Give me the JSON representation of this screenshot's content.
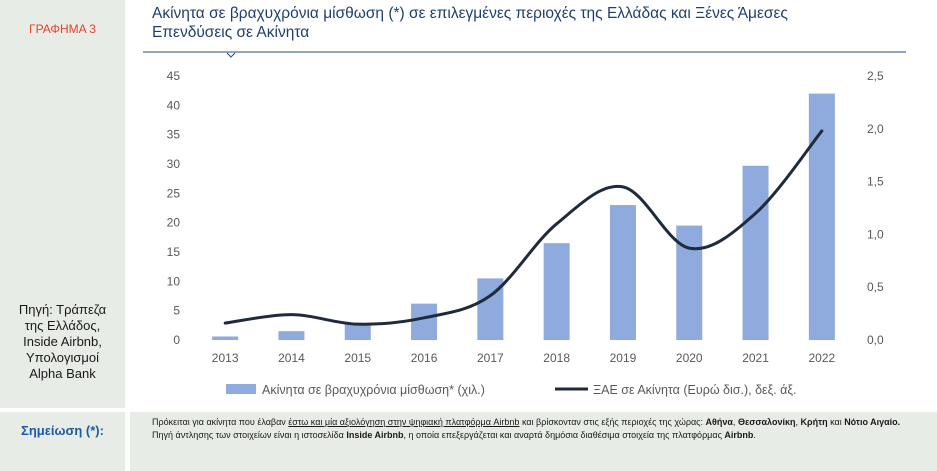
{
  "header": {
    "graph_label": "ΓΡΑΦΗΜΑ 3",
    "title_line1": "Ακίνητα σε βραχυχρόνια μίσθωση (*) σε επιλεγμένες περιοχές της Ελλάδας και Ξένες Άμεσες",
    "title_line2": "Επενδύσεις σε Ακίνητα"
  },
  "source": {
    "lines": [
      "Πηγή: Τράπεζα",
      "της Ελλάδος,",
      "Inside Airbnb,",
      "Υπολογισμοί",
      "Alpha Bank"
    ]
  },
  "note": {
    "label": "Σημείωση (*):",
    "p1": "Πρόκειται για ακίνητα που έλαβαν ",
    "p2": "έστω και μία αξιολόγηση στην ψηφιακή πλατφόρμα Airbnb",
    "p3": " και βρίσκονταν στις εξής περιοχές της χώρας: ",
    "p4": "Αθήνα",
    "p5": ", ",
    "p6": "Θεσσαλονίκη",
    "p7": ", ",
    "p8": "Κρήτη",
    "p9": " και ",
    "p10": "Νότιο Αιγαίο.",
    "p11": " Πηγή άντλησης των στοιχείων είναι η ιστοσελίδα ",
    "p12": "Inside Airbnb",
    "p13": ", η οποία επεξεργάζεται και αναρτά δημόσια διαθέσιμα στοιχεία της πλατφόρμας ",
    "p14": "Airbnb",
    "p15": "."
  },
  "colors": {
    "bar": "#8faadc",
    "line": "#1f2a3a",
    "title": "#1f3f6e",
    "rule": "#1f4e79",
    "graph_label": "#e8412b",
    "note_label": "#1e5aa8"
  },
  "chart_data": {
    "type": "bar+line",
    "categories": [
      "2013",
      "2014",
      "2015",
      "2016",
      "2017",
      "2018",
      "2019",
      "2020",
      "2021",
      "2022"
    ],
    "series": [
      {
        "name": "Ακίνητα σε βραχυχρόνια μίσθωση* (χιλ.)",
        "type": "bar",
        "axis": "left",
        "values": [
          0.6,
          1.5,
          2.8,
          6.2,
          10.5,
          16.5,
          23.0,
          19.5,
          29.7,
          42.0
        ]
      },
      {
        "name": "ΞΑΕ σε Ακίνητα (Ευρώ δισ.), δεξ. άξ.",
        "type": "line",
        "axis": "right",
        "values": [
          0.16,
          0.24,
          0.15,
          0.21,
          0.42,
          1.1,
          1.45,
          0.87,
          1.2,
          1.98
        ]
      }
    ],
    "y_left": {
      "min": 0,
      "max": 45,
      "ticks": [
        "0",
        "5",
        "10",
        "15",
        "20",
        "25",
        "30",
        "35",
        "40",
        "45"
      ]
    },
    "y_right": {
      "min": 0,
      "max": 2.5,
      "ticks": [
        "0,0",
        "0,5",
        "1,0",
        "1,5",
        "2,0",
        "2,5"
      ]
    },
    "grid": false,
    "legend_position": "bottom"
  }
}
